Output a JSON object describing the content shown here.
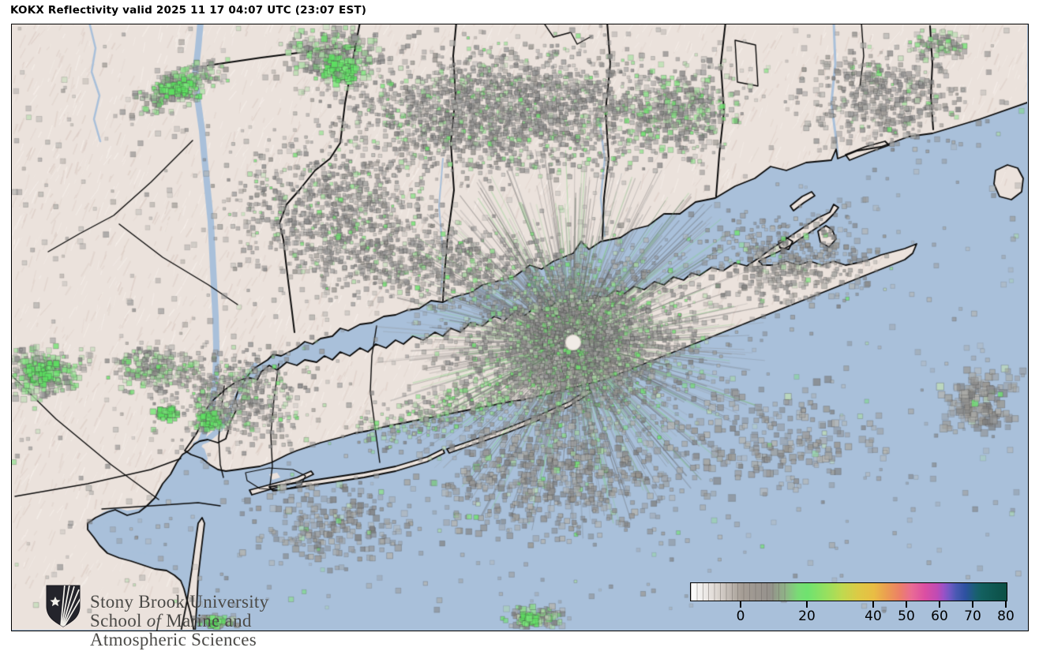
{
  "title": "KOKX Reflectivity valid 2025 11 17 04:07 UTC (23:07 EST)",
  "radar": {
    "station": "KOKX",
    "product": "Reflectivity",
    "valid_utc": "2025 11 17 04:07 UTC",
    "valid_local": "23:07 EST"
  },
  "logo": {
    "line1": "Stony Brook University",
    "line2_part1": "School ",
    "line2_italic": "of",
    "line2_part2": " Marine and",
    "line3": "Atmospheric Sciences"
  },
  "colorbar": {
    "tick_labels": [
      "0",
      "20",
      "40",
      "50",
      "60",
      "70",
      "80"
    ],
    "gradient_stops": [
      "#ffffff",
      "#a69e96",
      "#6fe26f",
      "#c0d94f",
      "#e9bd44",
      "#ec8166",
      "#dc4fa2",
      "#9b51c6",
      "#4a59b3",
      "#1a5f74",
      "#0b4f44"
    ]
  },
  "map_colors": {
    "water": "#a9c0da",
    "land": "#ebe2dc",
    "land_shadow": "#d9c9c1",
    "land_highlight": "#f8f2ed",
    "boundary": "#0a0a0a",
    "clutter_gray": "#8f8f8f",
    "precip_green": "#6fe26f",
    "precip_green_bright": "#5ce060",
    "radar_dot": "#f1ece6"
  }
}
